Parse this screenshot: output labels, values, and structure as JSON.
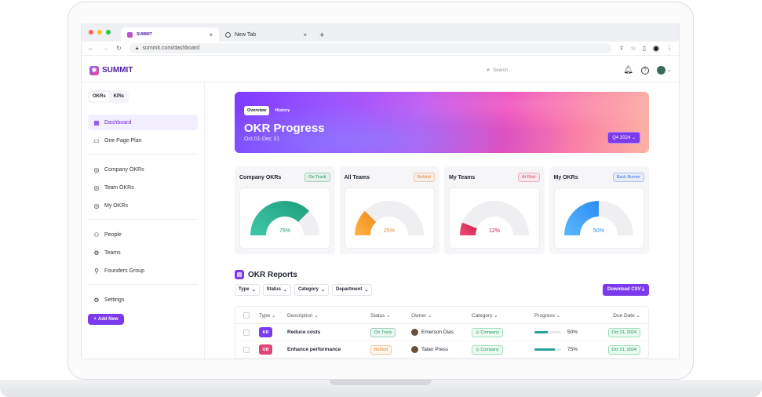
{
  "browser": {
    "tabs": [
      {
        "label": "SUMMIT"
      },
      {
        "label": "New Tab"
      }
    ],
    "url": "summit.com/dashboard"
  },
  "app": {
    "logo": "SUMMIT",
    "search_placeholder": "Search..."
  },
  "sidebar": {
    "segments": [
      "OKRs",
      "KPIs"
    ],
    "groups": [
      [
        {
          "label": "Dashboard",
          "icon": "grid-icon"
        },
        {
          "label": "One Page Plan",
          "icon": "layout-icon"
        }
      ],
      [
        {
          "label": "Company OKRs",
          "icon": "target-icon"
        },
        {
          "label": "Team OKRs",
          "icon": "target-icon"
        },
        {
          "label": "My OKRs",
          "icon": "target-icon"
        }
      ],
      [
        {
          "label": "People",
          "icon": "people-icon"
        },
        {
          "label": "Teams",
          "icon": "teams-icon"
        },
        {
          "label": "Founders Group",
          "icon": "user-icon"
        }
      ],
      [
        {
          "label": "Settings",
          "icon": "gear-icon"
        }
      ]
    ],
    "add_new": "Add New"
  },
  "hero": {
    "tabs": [
      "Overview",
      "History"
    ],
    "title": "OKR Progress",
    "subtitle": "Oct 01-Dec 31",
    "quarter": "Q4 2024"
  },
  "cards": [
    {
      "title": "Company OKRs",
      "status": "On Track",
      "status_color": "#1a9a57",
      "value": 75,
      "label": "75%",
      "color_a": "#3fc9a8",
      "color_b": "#1f9d7c",
      "text_color": "#1f9d7c"
    },
    {
      "title": "All Teams",
      "status": "Behind",
      "status_color": "#e8842a",
      "value": 25,
      "label": "25%",
      "color_a": "#ffb547",
      "color_b": "#f08a1a",
      "text_color": "#e8842a"
    },
    {
      "title": "My Teams",
      "status": "At Risk",
      "status_color": "#e23d5a",
      "value": 12,
      "label": "12%",
      "color_a": "#f0507a",
      "color_b": "#c81e4a",
      "text_color": "#c81e4a"
    },
    {
      "title": "My OKRs",
      "status": "Back Burner",
      "status_color": "#3b6fe0",
      "value": 50,
      "label": "50%",
      "color_a": "#5ab8ff",
      "color_b": "#2d8cf0",
      "text_color": "#2d8cf0"
    }
  ],
  "reports": {
    "title": "OKR Reports",
    "filters": [
      "Type",
      "Status",
      "Category",
      "Department"
    ],
    "download": "Download CSV",
    "columns": [
      "Type",
      "Description",
      "Status",
      "Owner",
      "Category",
      "Progress",
      "Due Date"
    ],
    "rows": [
      {
        "type": "KR",
        "type_color": "#7c3aed",
        "description": "Reduce costs",
        "status": "On Track",
        "status_color": "#1a9a57",
        "owner": "Emerson Dias",
        "category": "Company",
        "progress": 50,
        "progress_label": "50%",
        "due": "Oct 21, 2024"
      },
      {
        "type": "OB",
        "type_color": "#e0457b",
        "description": "Enhance performance",
        "status": "Behind",
        "status_color": "#e8842a",
        "owner": "Talan Press",
        "category": "Company",
        "progress": 75,
        "progress_label": "75%",
        "due": "Oct 21, 2024"
      }
    ]
  }
}
